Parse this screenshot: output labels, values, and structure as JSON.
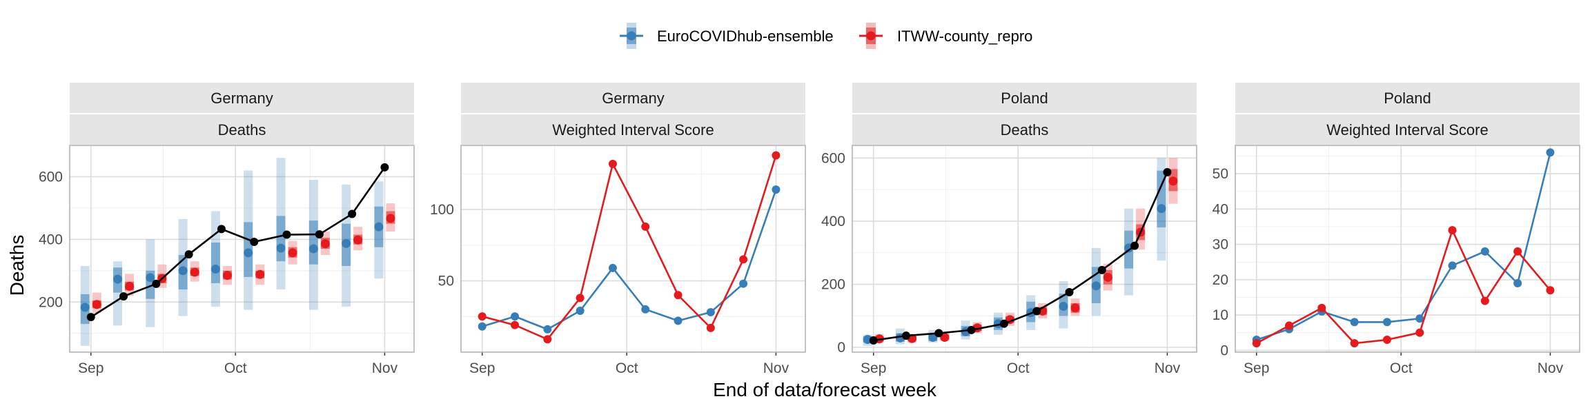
{
  "legend": {
    "items": [
      {
        "label": "EuroCOVIDhub-ensemble",
        "color": "#377eb8"
      },
      {
        "label": "ITWW-county_repro",
        "color": "#e41a1c"
      }
    ]
  },
  "axis_labels": {
    "xlabel": "End of data/forecast week",
    "ylabel": "Deaths"
  },
  "chart_data": [
    {
      "type": "line",
      "facet": [
        "Germany",
        "Deaths"
      ],
      "x_ticks": [
        "Sep",
        "Oct",
        "Nov"
      ],
      "ylim": [
        40,
        700
      ],
      "y_ticks": [
        200,
        400,
        600
      ],
      "observed": [
        152,
        218,
        258,
        352,
        433,
        392,
        415,
        416,
        481,
        630
      ],
      "series": [
        {
          "name": "EuroCOVIDhub-ensemble",
          "median": [
            183,
            273,
            278,
            300,
            305,
            357,
            372,
            370,
            387,
            440
          ],
          "inner": [
            [
              130,
              225
            ],
            [
              230,
              310
            ],
            [
              210,
              300
            ],
            [
              240,
              350
            ],
            [
              260,
              390
            ],
            [
              280,
              455
            ],
            [
              330,
              475
            ],
            [
              320,
              460
            ],
            [
              315,
              450
            ],
            [
              375,
              505
            ]
          ],
          "outer": [
            [
              60,
              315
            ],
            [
              125,
              330
            ],
            [
              120,
              400
            ],
            [
              155,
              465
            ],
            [
              185,
              490
            ],
            [
              175,
              620
            ],
            [
              240,
              660
            ],
            [
              175,
              590
            ],
            [
              185,
              575
            ],
            [
              275,
              585
            ]
          ]
        },
        {
          "name": "ITWW-county_repro",
          "median": [
            192,
            250,
            275,
            295,
            285,
            288,
            357,
            386,
            398,
            467
          ],
          "inner": [
            [
              180,
              205
            ],
            [
              237,
              265
            ],
            [
              260,
              290
            ],
            [
              283,
              310
            ],
            [
              272,
              300
            ],
            [
              276,
              300
            ],
            [
              342,
              375
            ],
            [
              370,
              405
            ],
            [
              384,
              415
            ],
            [
              450,
              490
            ]
          ],
          "outer": [
            [
              165,
              230
            ],
            [
              220,
              290
            ],
            [
              245,
              320
            ],
            [
              265,
              330
            ],
            [
              255,
              315
            ],
            [
              255,
              320
            ],
            [
              320,
              395
            ],
            [
              350,
              425
            ],
            [
              365,
              440
            ],
            [
              425,
              515
            ]
          ]
        }
      ]
    },
    {
      "type": "line",
      "facet": [
        "Germany",
        "Weighted Interval Score"
      ],
      "x_ticks": [
        "Sep",
        "Oct",
        "Nov"
      ],
      "ylim": [
        0,
        145
      ],
      "y_ticks": [
        50,
        100
      ],
      "series": [
        {
          "name": "EuroCOVIDhub-ensemble",
          "values": [
            18,
            25,
            16,
            29,
            59,
            30,
            22,
            28,
            48,
            114
          ]
        },
        {
          "name": "ITWW-county_repro",
          "values": [
            25,
            19,
            9,
            38,
            132,
            88,
            40,
            17,
            65,
            138
          ]
        }
      ]
    },
    {
      "type": "line",
      "facet": [
        "Poland",
        "Deaths"
      ],
      "x_ticks": [
        "Sep",
        "Oct",
        "Nov"
      ],
      "ylim": [
        -15,
        640
      ],
      "y_ticks": [
        0,
        200,
        400,
        600
      ],
      "observed": [
        22,
        37,
        45,
        55,
        75,
        115,
        175,
        245,
        322,
        555
      ],
      "series": [
        {
          "name": "EuroCOVIDhub-ensemble",
          "median": [
            25,
            30,
            32,
            50,
            75,
            110,
            130,
            195,
            315,
            440
          ],
          "inner": [
            [
              15,
              35
            ],
            [
              18,
              45
            ],
            [
              20,
              45
            ],
            [
              35,
              68
            ],
            [
              55,
              95
            ],
            [
              80,
              145
            ],
            [
              100,
              170
            ],
            [
              140,
              255
            ],
            [
              250,
              370
            ],
            [
              380,
              560
            ]
          ],
          "outer": [
            [
              5,
              40
            ],
            [
              10,
              60
            ],
            [
              15,
              55
            ],
            [
              25,
              85
            ],
            [
              40,
              110
            ],
            [
              55,
              165
            ],
            [
              60,
              210
            ],
            [
              100,
              315
            ],
            [
              165,
              440
            ],
            [
              275,
              600
            ]
          ]
        },
        {
          "name": "ITWW-county_repro",
          "median": [
            27,
            28,
            32,
            62,
            88,
            115,
            125,
            222,
            365,
            527
          ],
          "inner": [
            [
              20,
              35
            ],
            [
              22,
              35
            ],
            [
              25,
              40
            ],
            [
              52,
              72
            ],
            [
              78,
              98
            ],
            [
              103,
              128
            ],
            [
              110,
              140
            ],
            [
              200,
              245
            ],
            [
              340,
              390
            ],
            [
              495,
              565
            ]
          ],
          "outer": [
            [
              15,
              42
            ],
            [
              15,
              42
            ],
            [
              20,
              45
            ],
            [
              45,
              80
            ],
            [
              68,
              110
            ],
            [
              92,
              140
            ],
            [
              100,
              155
            ],
            [
              180,
              265
            ],
            [
              310,
              440
            ],
            [
              455,
              600
            ]
          ]
        }
      ]
    },
    {
      "type": "line",
      "facet": [
        "Poland",
        "Weighted Interval Score"
      ],
      "x_ticks": [
        "Sep",
        "Oct",
        "Nov"
      ],
      "ylim": [
        -0.5,
        58
      ],
      "y_ticks": [
        0,
        10,
        20,
        30,
        40,
        50
      ],
      "series": [
        {
          "name": "EuroCOVIDhub-ensemble",
          "values": [
            3,
            6,
            11,
            8,
            8,
            9,
            24,
            28,
            19,
            56
          ]
        },
        {
          "name": "ITWW-county_repro",
          "values": [
            2,
            7,
            12,
            2,
            3,
            5,
            34,
            14,
            28,
            17
          ]
        }
      ]
    }
  ]
}
